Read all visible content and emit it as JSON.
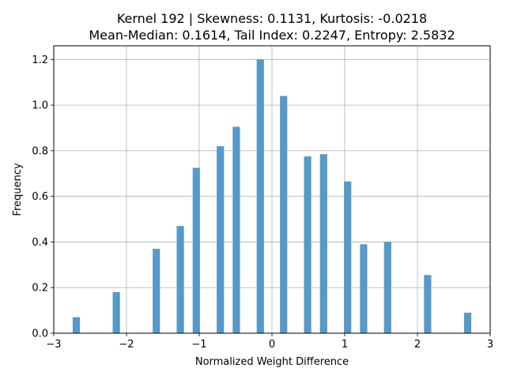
{
  "chart_data": {
    "type": "bar",
    "title_line1": "Kernel 192 | Skewness: 0.1131, Kurtosis: -0.0218",
    "title_line2": "Mean-Median: 0.1614, Tail Index: 0.2247, Entropy: 2.5832",
    "xlabel": "Normalized Weight Difference",
    "ylabel": "Frequency",
    "xlim": [
      -3.0,
      3.0
    ],
    "ylim": [
      0,
      1.26
    ],
    "bar_width": 0.1,
    "grid": true,
    "bar_color": "#5799c7",
    "x_ticks": [
      -3,
      -2,
      -1,
      0,
      1,
      2,
      3
    ],
    "x_tick_labels": [
      "−3",
      "−2",
      "−1",
      "0",
      "1",
      "2",
      "3"
    ],
    "y_ticks": [
      0.0,
      0.2,
      0.4,
      0.6,
      0.8,
      1.0,
      1.2
    ],
    "y_tick_labels": [
      "0.0",
      "0.2",
      "0.4",
      "0.6",
      "0.8",
      "1.0",
      "1.2"
    ],
    "x": [
      -2.69,
      -2.14,
      -1.59,
      -1.26,
      -1.04,
      -0.71,
      -0.49,
      -0.16,
      0.16,
      0.49,
      0.71,
      1.04,
      1.26,
      1.59,
      2.14,
      2.69
    ],
    "values": [
      0.07,
      0.18,
      0.37,
      0.47,
      0.725,
      0.82,
      0.905,
      1.2,
      1.04,
      0.775,
      0.785,
      0.665,
      0.39,
      0.4,
      0.255,
      0.09
    ]
  }
}
